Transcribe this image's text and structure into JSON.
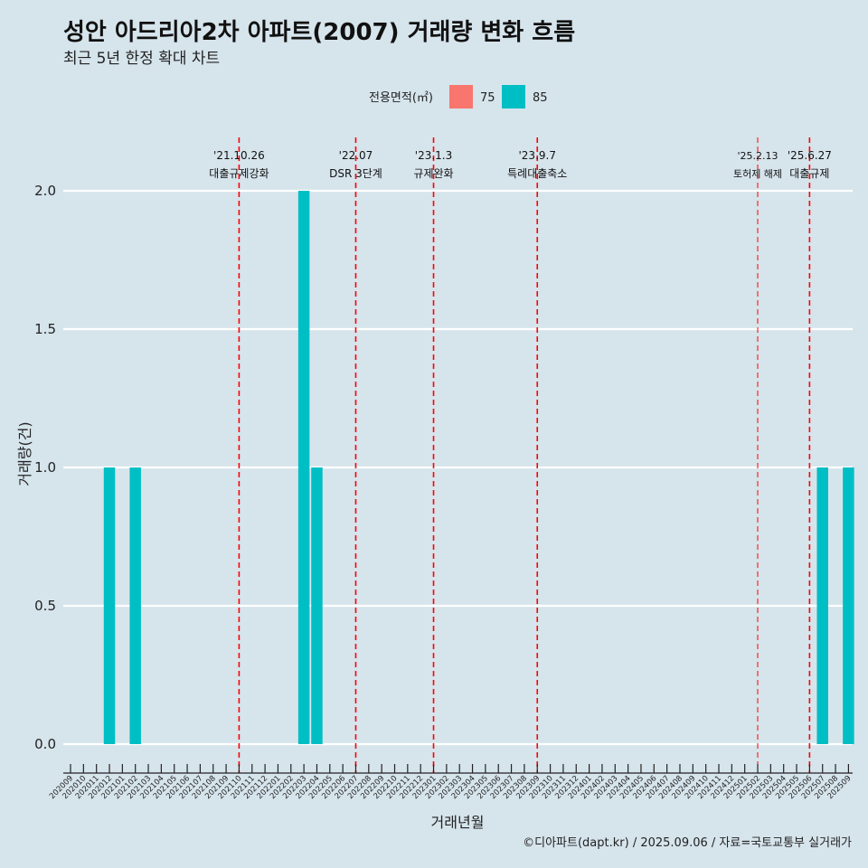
{
  "chart_data": {
    "type": "bar",
    "title": "성안 아드리아2차 아파트(2007) 거래량 변화 흐름",
    "subtitle": "최근 5년 한정 확대 차트",
    "xlabel": "거래년월",
    "ylabel": "거래량(건)",
    "ylim": [
      0,
      2
    ],
    "yticks": [
      "0.0",
      "0.5",
      "1.0",
      "1.5",
      "2.0"
    ],
    "grid": true,
    "legend": {
      "title": "전용면적(㎡)",
      "position": "top",
      "entries": [
        {
          "name": "75",
          "color": "#f8766d"
        },
        {
          "name": "85",
          "color": "#00bfc4"
        }
      ]
    },
    "categories": [
      "202009",
      "202010",
      "202011",
      "202012",
      "202101",
      "202102",
      "202103",
      "202104",
      "202105",
      "202106",
      "202107",
      "202108",
      "202109",
      "202110",
      "202111",
      "202112",
      "202201",
      "202202",
      "202203",
      "202204",
      "202205",
      "202206",
      "202207",
      "202208",
      "202209",
      "202210",
      "202211",
      "202212",
      "202301",
      "202302",
      "202303",
      "202304",
      "202305",
      "202306",
      "202307",
      "202308",
      "202309",
      "202310",
      "202311",
      "202312",
      "202401",
      "202402",
      "202403",
      "202404",
      "202405",
      "202406",
      "202407",
      "202408",
      "202409",
      "202410",
      "202411",
      "202412",
      "202501",
      "202502",
      "202503",
      "202504",
      "202505",
      "202506",
      "202507",
      "202508",
      "202509"
    ],
    "series": [
      {
        "name": "75",
        "color": "#f8766d",
        "values": [
          0,
          0,
          0,
          0,
          0,
          0,
          0,
          0,
          0,
          0,
          0,
          0,
          0,
          0,
          0,
          0,
          0,
          0,
          0,
          0,
          0,
          0,
          0,
          0,
          0,
          0,
          0,
          0,
          0,
          0,
          0,
          0,
          0,
          0,
          0,
          0,
          0,
          0,
          0,
          0,
          0,
          0,
          0,
          0,
          0,
          0,
          0,
          0,
          0,
          0,
          0,
          0,
          0,
          0,
          0,
          0,
          0,
          0,
          0,
          0,
          0
        ]
      },
      {
        "name": "85",
        "color": "#00bfc4",
        "values": [
          0,
          0,
          0,
          1,
          0,
          1,
          0,
          0,
          0,
          0,
          0,
          0,
          0,
          0,
          0,
          0,
          0,
          0,
          2,
          1,
          0,
          0,
          0,
          0,
          0,
          0,
          0,
          0,
          0,
          0,
          0,
          0,
          0,
          0,
          0,
          0,
          0,
          0,
          0,
          0,
          0,
          0,
          0,
          0,
          0,
          0,
          0,
          0,
          0,
          0,
          0,
          0,
          0,
          0,
          0,
          0,
          0,
          0,
          1,
          0,
          1
        ]
      }
    ],
    "annotations": [
      {
        "date": "'21.10.26",
        "label": "대출규제강화",
        "x": "202110",
        "style": "dashed"
      },
      {
        "date": "'22.07",
        "label": "DSR 3단계",
        "x": "202207",
        "style": "dashed"
      },
      {
        "date": "'23.1.3",
        "label": "규제완화",
        "x": "202301",
        "style": "dashed"
      },
      {
        "date": "'23.9.7",
        "label": "특례대출축소",
        "x": "202309",
        "style": "dashed"
      },
      {
        "date": "'25.2.13",
        "label": "토허제 해제",
        "x": "202502",
        "style": "thin"
      },
      {
        "date": "'25.6.27",
        "label": "대출규제",
        "x": "202506",
        "style": "dashed"
      }
    ],
    "caption": "©디아파트(dapt.kr) / 2025.09.06 / 자료=국토교통부 실거래가"
  }
}
